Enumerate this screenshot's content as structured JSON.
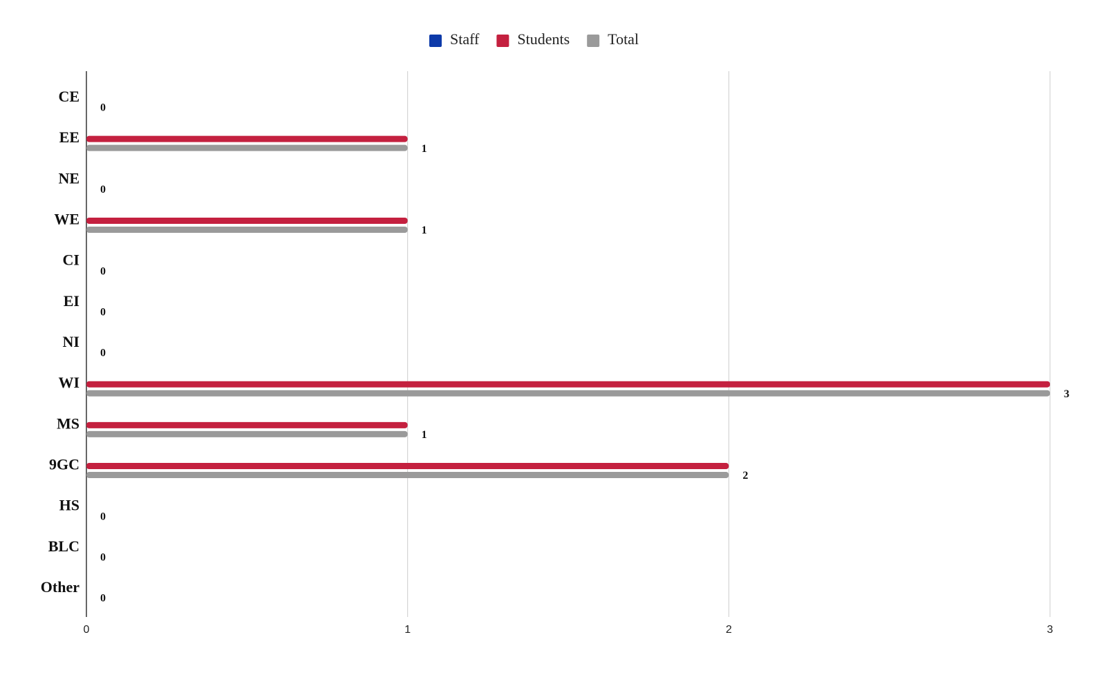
{
  "chart_data": {
    "type": "hbar",
    "categories": [
      "CE",
      "EE",
      "NE",
      "WE",
      "CI",
      "EI",
      "NI",
      "WI",
      "MS",
      "9GC",
      "HS",
      "BLC",
      "Other"
    ],
    "series": [
      {
        "name": "Staff",
        "color": "#0d3aa9",
        "values": [
          0,
          0,
          0,
          0,
          0,
          0,
          0,
          0,
          0,
          0,
          0,
          0,
          0
        ]
      },
      {
        "name": "Students",
        "color": "#c4203f",
        "values": [
          0,
          1,
          0,
          1,
          0,
          0,
          0,
          3,
          1,
          2,
          0,
          0,
          0
        ]
      },
      {
        "name": "Total",
        "color": "#9a9a9a",
        "values": [
          0,
          1,
          0,
          1,
          0,
          0,
          0,
          3,
          1,
          2,
          0,
          0,
          0
        ]
      }
    ],
    "xlim": [
      0,
      3
    ],
    "xticks": [
      0,
      1,
      2,
      3
    ],
    "grid": true,
    "legend": "top",
    "data_labels_series": "Total"
  }
}
